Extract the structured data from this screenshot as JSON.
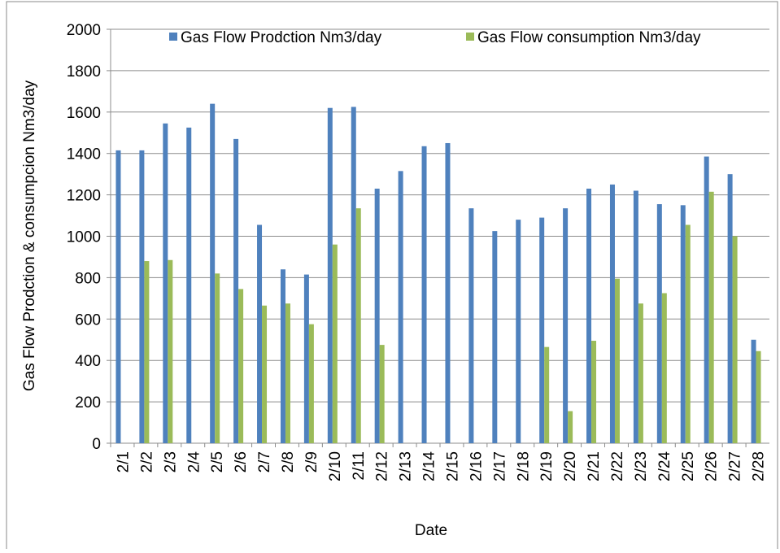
{
  "chart_data": {
    "type": "bar",
    "x_label": "Date",
    "y_label": "Gas Flow Prodction & consumpcion Nm3/day",
    "categories": [
      "2/1",
      "2/2",
      "2/3",
      "2/4",
      "2/5",
      "2/6",
      "2/7",
      "2/8",
      "2/9",
      "2/10",
      "2/11",
      "2/12",
      "2/13",
      "2/14",
      "2/15",
      "2/16",
      "2/17",
      "2/18",
      "2/19",
      "2/20",
      "2/21",
      "2/22",
      "2/23",
      "2/24",
      "2/25",
      "2/26",
      "2/27",
      "2/28"
    ],
    "series": [
      {
        "name": "Gas Flow Prodction Nm3/day",
        "color": "#4f81bd",
        "values": [
          1415,
          1415,
          1545,
          1525,
          1640,
          1470,
          1055,
          840,
          815,
          1620,
          1625,
          1230,
          1315,
          1435,
          1450,
          1135,
          1025,
          1080,
          1090,
          1135,
          1230,
          1250,
          1220,
          1155,
          1150,
          1385,
          1300,
          500
        ]
      },
      {
        "name": "Gas Flow consumption Nm3/day",
        "color": "#9bbb59",
        "values": [
          null,
          880,
          885,
          null,
          820,
          745,
          665,
          675,
          575,
          960,
          1135,
          475,
          null,
          null,
          null,
          null,
          null,
          null,
          465,
          155,
          495,
          795,
          675,
          725,
          1055,
          1215,
          1000,
          445
        ]
      }
    ],
    "ylim": [
      0,
      2000
    ],
    "yticks": [
      0,
      200,
      400,
      600,
      800,
      1000,
      1200,
      1400,
      1600,
      1800,
      2000
    ],
    "grid": true,
    "legend": "top-right"
  }
}
